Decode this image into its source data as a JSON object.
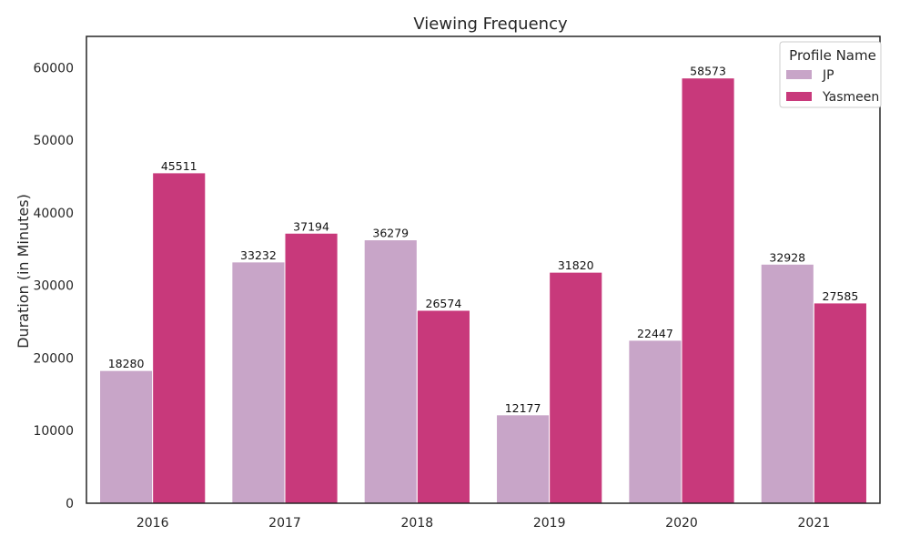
{
  "chart_data": {
    "type": "bar",
    "title": "Viewing Frequency",
    "xlabel": "",
    "ylabel": "Duration (in Minutes)",
    "categories": [
      "2016",
      "2017",
      "2018",
      "2019",
      "2020",
      "2021"
    ],
    "series": [
      {
        "name": "JP",
        "color": "#c8a5c8",
        "values": [
          18280,
          33232,
          36279,
          12177,
          22447,
          32928
        ]
      },
      {
        "name": "Yasmeen",
        "color": "#c8397b",
        "values": [
          45511,
          37194,
          26574,
          31820,
          58573,
          27585
        ]
      }
    ],
    "ylim": [
      0,
      64300
    ],
    "yticks": [
      0,
      10000,
      20000,
      30000,
      40000,
      50000,
      60000
    ],
    "grid": false,
    "legend": {
      "title": "Profile Name",
      "position": "top-right"
    },
    "data_labels": true
  }
}
